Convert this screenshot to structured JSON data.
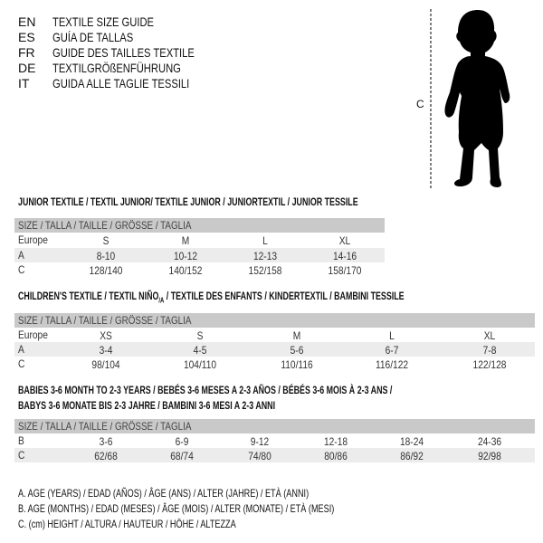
{
  "languages": [
    {
      "code": "EN",
      "name": "TEXTILE SIZE GUIDE"
    },
    {
      "code": "ES",
      "name": "GUÍA DE TALLAS"
    },
    {
      "code": "FR",
      "name": "GUIDE DES TAILLES TEXTILE"
    },
    {
      "code": "DE",
      "name": "TEXTILGRÖßENFÜHRUNG"
    },
    {
      "code": "IT",
      "name": "GUIDA ALLE TAGLIE TESSILI"
    }
  ],
  "figure": {
    "height_label": "C",
    "icon": "child-silhouette-icon"
  },
  "junior": {
    "title": "JUNIOR TEXTILE / TEXTIL JUNIOR/ TEXTILE JUNIOR / JUNIORTEXTIL / JUNIOR TESSILE",
    "header": "SIZE / TALLA / TAILLE / GRÖSSE / TAGLIA",
    "rows": [
      {
        "label": "Europe",
        "cells": [
          "S",
          "M",
          "L",
          "XL"
        ]
      },
      {
        "label": "A",
        "cells": [
          "8-10",
          "10-12",
          "12-13",
          "14-16"
        ]
      },
      {
        "label": "C",
        "cells": [
          "128/140",
          "140/152",
          "152/158",
          "158/170"
        ]
      }
    ]
  },
  "children": {
    "title_pre": "CHILDREN'S TEXTILE / TEXTIL NIÑO",
    "title_sub": "/A",
    "title_post": " / TEXTILE DES ENFANTS / KINDERTEXTIL / BAMBINI TESSILE",
    "header": "SIZE / TALLA / TAILLE / GRÖSSE / TAGLIA",
    "rows": [
      {
        "label": "Europe",
        "cells": [
          "XS",
          "S",
          "M",
          "L",
          "XL"
        ]
      },
      {
        "label": "A",
        "cells": [
          "3-4",
          "4-5",
          "5-6",
          "6-7",
          "7-8"
        ]
      },
      {
        "label": "C",
        "cells": [
          "98/104",
          "104/110",
          "110/116",
          "116/122",
          "122/128"
        ]
      }
    ]
  },
  "babies": {
    "title_line1": "BABIES 3-6 MONTH TO 2-3 YEARS / BEBÉS 3-6 MESES A 2-3 AÑOS / BÉBÉS 3-6 MOIS À 2-3 ANS /",
    "title_line2": "BABYS 3-6 MONATE BIS 2-3 JAHRE / BAMBINI 3-6 MESI A 2-3 ANNI",
    "header": "SIZE / TALLA / TAILLE / GRÖSSE / TAGLIA",
    "rows": [
      {
        "label": "B",
        "cells": [
          "3-6",
          "6-9",
          "9-12",
          "12-18",
          "18-24",
          "24-36"
        ]
      },
      {
        "label": "C",
        "cells": [
          "62/68",
          "68/74",
          "74/80",
          "80/86",
          "86/92",
          "92/98"
        ]
      }
    ]
  },
  "legend": [
    "A. AGE (YEARS) / EDAD (AÑOS) / ÂGE (ANS) / ALTER (JAHRE) / ETÀ (ANNI)",
    "B. AGE (MONTHS) / EDAD (MESES) / ÂGE (MOIS) / ALTER (MONATE) / ETÀ (MESI)",
    "C. (cm) HEIGHT / ALTURA / HAUTEUR / HÖHE / ALTEZZA"
  ]
}
